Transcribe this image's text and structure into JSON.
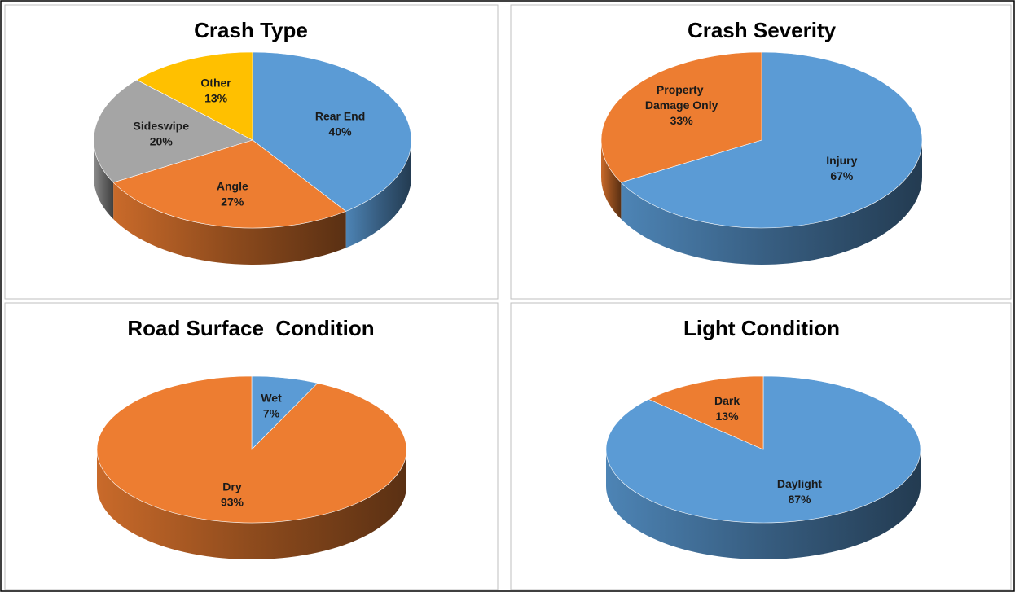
{
  "chart_data": [
    {
      "type": "pie",
      "title": "Crash Type",
      "categories": [
        "Rear End",
        "Angle",
        "Sideswipe",
        "Other"
      ],
      "values": [
        40,
        27,
        20,
        13
      ],
      "value_labels": [
        "40%",
        "27%",
        "20%",
        "13%"
      ],
      "colors": [
        "#5b9bd5",
        "#ed7d31",
        "#a5a5a5",
        "#ffc000"
      ]
    },
    {
      "type": "pie",
      "title": "Crash Severity",
      "categories": [
        "Injury",
        "Property Damage Only"
      ],
      "values": [
        67,
        33
      ],
      "value_labels": [
        "67%",
        "33%"
      ],
      "colors": [
        "#5b9bd5",
        "#ed7d31"
      ]
    },
    {
      "type": "pie",
      "title": "Road Surface  Condition",
      "categories": [
        "Wet",
        "Dry"
      ],
      "values": [
        7,
        93
      ],
      "value_labels": [
        "7%",
        "93%"
      ],
      "colors": [
        "#5b9bd5",
        "#ed7d31"
      ]
    },
    {
      "type": "pie",
      "title": "Light Condition",
      "categories": [
        "Daylight",
        "Dark"
      ],
      "values": [
        87,
        13
      ],
      "value_labels": [
        "87%",
        "13%"
      ],
      "colors": [
        "#5b9bd5",
        "#ed7d31"
      ]
    }
  ]
}
